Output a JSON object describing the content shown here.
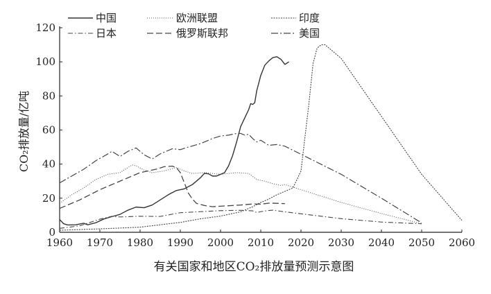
{
  "chart_data": {
    "type": "line",
    "title": "",
    "caption": "有关国家和地区CO₂排放量预测示意图",
    "xlabel": "",
    "ylabel": "CO₂排放量/亿吨",
    "xlim": [
      1960,
      2060
    ],
    "ylim": [
      0,
      120
    ],
    "x_ticks": [
      1960,
      1970,
      1980,
      1990,
      2000,
      2010,
      2020,
      2030,
      2040,
      2050,
      2060
    ],
    "y_ticks": [
      0,
      20,
      40,
      60,
      80,
      100,
      120
    ],
    "grid": false,
    "legend_position": "top",
    "series": [
      {
        "name": "中国",
        "style": "solid",
        "points": [
          [
            1960,
            7.5
          ],
          [
            1961,
            5
          ],
          [
            1962,
            4.3
          ],
          [
            1964,
            4.4
          ],
          [
            1966,
            5.3
          ],
          [
            1967,
            4.4
          ],
          [
            1969,
            5.6
          ],
          [
            1971,
            7.8
          ],
          [
            1973,
            9.2
          ],
          [
            1975,
            10.5
          ],
          [
            1977,
            13
          ],
          [
            1979,
            14.8
          ],
          [
            1981,
            14.4
          ],
          [
            1983,
            16
          ],
          [
            1985,
            19
          ],
          [
            1987,
            22
          ],
          [
            1989,
            24.5
          ],
          [
            1991,
            25.5
          ],
          [
            1993,
            28
          ],
          [
            1995,
            32
          ],
          [
            1996,
            34.6
          ],
          [
            1997,
            34.3
          ],
          [
            1998,
            33
          ],
          [
            1999,
            33
          ],
          [
            2000,
            34
          ],
          [
            2001,
            35
          ],
          [
            2002,
            39
          ],
          [
            2003,
            45
          ],
          [
            2004,
            53
          ],
          [
            2005,
            62
          ],
          [
            2006,
            67
          ],
          [
            2007,
            72
          ],
          [
            2007.5,
            75.5
          ],
          [
            2008,
            75
          ],
          [
            2008.5,
            76
          ],
          [
            2009,
            83
          ],
          [
            2010,
            92
          ],
          [
            2011,
            98
          ],
          [
            2012,
            100.5
          ],
          [
            2013,
            102.5
          ],
          [
            2014,
            103
          ],
          [
            2015,
            101.5
          ],
          [
            2016,
            98.5
          ],
          [
            2017,
            100
          ]
        ]
      },
      {
        "name": "欧洲联盟",
        "style": "dotted",
        "points": [
          [
            1960,
            17
          ],
          [
            1963,
            22
          ],
          [
            1966,
            26
          ],
          [
            1969,
            31
          ],
          [
            1972,
            34
          ],
          [
            1975,
            35
          ],
          [
            1978,
            39.5
          ],
          [
            1979,
            39
          ],
          [
            1981,
            36.5
          ],
          [
            1983,
            35
          ],
          [
            1986,
            36
          ],
          [
            1989,
            38
          ],
          [
            1991,
            36
          ],
          [
            1993,
            34.5
          ],
          [
            1996,
            35
          ],
          [
            2000,
            34
          ],
          [
            2004,
            35
          ],
          [
            2007,
            34.5
          ],
          [
            2009,
            31
          ],
          [
            2011,
            30
          ],
          [
            2013,
            28.5
          ],
          [
            2015,
            27.5
          ],
          [
            2016,
            28
          ],
          [
            2030,
            17.5
          ],
          [
            2040,
            11
          ],
          [
            2050,
            5
          ]
        ]
      },
      {
        "name": "印度",
        "style": "dashed-fine",
        "points": [
          [
            1960,
            1.2
          ],
          [
            1970,
            2
          ],
          [
            1980,
            3
          ],
          [
            1990,
            5.8
          ],
          [
            1995,
            7.9
          ],
          [
            2000,
            9.5
          ],
          [
            2005,
            12
          ],
          [
            2008,
            15
          ],
          [
            2010,
            17.5
          ],
          [
            2012,
            19.5
          ],
          [
            2014,
            22
          ],
          [
            2016,
            24
          ],
          [
            2018,
            26
          ],
          [
            2020,
            36
          ],
          [
            2022,
            76
          ],
          [
            2023,
            99
          ],
          [
            2024,
            108
          ],
          [
            2025,
            110
          ],
          [
            2026,
            110
          ],
          [
            2027,
            108
          ],
          [
            2030,
            102
          ],
          [
            2040,
            68
          ],
          [
            2050,
            34
          ],
          [
            2060,
            7
          ]
        ]
      },
      {
        "name": "日本",
        "style": "dash-dot",
        "points": [
          [
            1960,
            2.3
          ],
          [
            1965,
            3.8
          ],
          [
            1970,
            7.7
          ],
          [
            1973,
            9.4
          ],
          [
            1975,
            9
          ],
          [
            1980,
            9.4
          ],
          [
            1985,
            9.3
          ],
          [
            1990,
            11.5
          ],
          [
            1995,
            12.1
          ],
          [
            2000,
            12.7
          ],
          [
            2005,
            12.9
          ],
          [
            2008,
            12.6
          ],
          [
            2009,
            11.6
          ],
          [
            2010,
            12.1
          ],
          [
            2012,
            12.8
          ],
          [
            2013,
            13
          ],
          [
            2015,
            12.3
          ],
          [
            2016,
            12
          ],
          [
            2030,
            8
          ],
          [
            2040,
            6
          ],
          [
            2050,
            5
          ]
        ]
      },
      {
        "name": "俄罗斯联邦",
        "style": "long-dash",
        "points": [
          [
            1960,
            14
          ],
          [
            1965,
            19
          ],
          [
            1970,
            25
          ],
          [
            1975,
            30
          ],
          [
            1980,
            35
          ],
          [
            1984,
            37
          ],
          [
            1986,
            38.5
          ],
          [
            1988,
            38.8
          ],
          [
            1989,
            38
          ],
          [
            1990,
            35
          ],
          [
            1991,
            29
          ],
          [
            1992,
            23
          ],
          [
            1993,
            19.5
          ],
          [
            1994,
            17
          ],
          [
            1996,
            15.7
          ],
          [
            1998,
            15
          ],
          [
            2000,
            15.3
          ],
          [
            2005,
            16
          ],
          [
            2008,
            16.6
          ],
          [
            2010,
            16.5
          ],
          [
            2012,
            17.1
          ],
          [
            2014,
            17
          ],
          [
            2016,
            16.8
          ]
        ]
      },
      {
        "name": "美国",
        "style": "dash-dot-long",
        "points": [
          [
            1960,
            29
          ],
          [
            1963,
            33
          ],
          [
            1966,
            37
          ],
          [
            1969,
            42
          ],
          [
            1972,
            46
          ],
          [
            1973,
            47.5
          ],
          [
            1975,
            44.5
          ],
          [
            1977,
            47.5
          ],
          [
            1979,
            49.5
          ],
          [
            1981,
            45.5
          ],
          [
            1983,
            43
          ],
          [
            1985,
            46
          ],
          [
            1988,
            49
          ],
          [
            1990,
            48.5
          ],
          [
            1992,
            50
          ],
          [
            1995,
            52
          ],
          [
            1998,
            55
          ],
          [
            2000,
            56.5
          ],
          [
            2002,
            57
          ],
          [
            2004,
            58
          ],
          [
            2005,
            58
          ],
          [
            2006,
            57
          ],
          [
            2007,
            57.5
          ],
          [
            2008,
            55
          ],
          [
            2009,
            53
          ],
          [
            2010,
            54
          ],
          [
            2012,
            51
          ],
          [
            2014,
            51.5
          ],
          [
            2016,
            50.5
          ],
          [
            2030,
            34
          ],
          [
            2040,
            20
          ],
          [
            2050,
            5.5
          ]
        ]
      }
    ]
  }
}
